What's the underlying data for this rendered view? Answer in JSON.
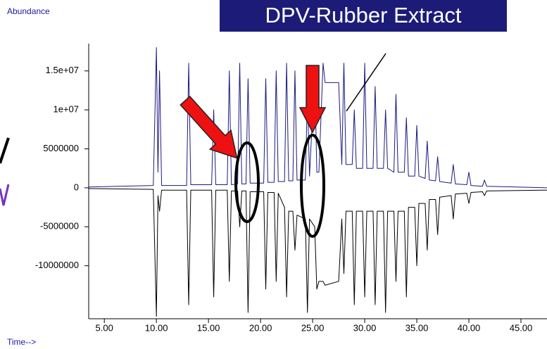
{
  "chart_data": {
    "type": "line",
    "title": "DPV-Rubber Extract",
    "y_label": "Abundance",
    "x_label": "Time-->",
    "x": [
      3.5,
      9.7,
      10.0,
      10.15,
      10.3,
      10.5,
      12.9,
      13.1,
      13.3,
      15.3,
      15.5,
      15.7,
      16.8,
      17.0,
      17.2,
      17.8,
      18.0,
      18.2,
      18.6,
      18.8,
      19.0,
      20.3,
      20.5,
      20.7,
      21.3,
      21.5,
      21.7,
      22.3,
      22.5,
      22.7,
      23.1,
      23.3,
      23.5,
      24.3,
      24.5,
      24.7,
      25.2,
      25.4,
      25.6,
      26.0,
      26.2,
      27.5,
      27.8,
      28.0,
      28.2,
      28.8,
      29.0,
      29.2,
      29.8,
      30.0,
      30.2,
      30.8,
      31.0,
      31.2,
      31.8,
      32.0,
      32.2,
      32.8,
      33.0,
      33.2,
      33.8,
      34.0,
      34.2,
      34.8,
      35.0,
      35.2,
      35.8,
      36.0,
      36.2,
      36.8,
      37.0,
      37.2,
      38.3,
      38.5,
      38.7,
      39.8,
      40.0,
      40.2,
      41.3,
      41.5,
      41.7,
      47.5
    ],
    "series": [
      {
        "color": "#1a1a80",
        "values": [
          100000,
          300000,
          18000000,
          2000000,
          15000000,
          300000,
          300000,
          16000000,
          400000,
          400000,
          10000000,
          400000,
          400000,
          15000000,
          400000,
          500000,
          16000000,
          500000,
          500000,
          14000000,
          600000,
          600000,
          14000000,
          700000,
          700000,
          15000000,
          800000,
          800000,
          16000000,
          900000,
          900000,
          15000000,
          1000000,
          1000000,
          12000000,
          1500000,
          15000000,
          2000000,
          2000000,
          16000000,
          13500000,
          13500000,
          3000000,
          16000000,
          3000000,
          3000000,
          10000000,
          2500000,
          2500000,
          16000000,
          2500000,
          2500000,
          13000000,
          2500000,
          2500000,
          10000000,
          2500000,
          2000000,
          12000000,
          2000000,
          2000000,
          9000000,
          1500000,
          1500000,
          8000000,
          1500000,
          1200000,
          6000000,
          1000000,
          900000,
          4000000,
          800000,
          600000,
          3000000,
          500000,
          400000,
          2000000,
          300000,
          200000,
          1000000,
          200000,
          0
        ]
      },
      {
        "color": "#000000",
        "values": [
          -100000,
          -200000,
          -16500000,
          -1000000,
          -3000000,
          -300000,
          -300000,
          -15000000,
          -300000,
          -300000,
          -14000000,
          -300000,
          -300000,
          -12000000,
          -400000,
          -400000,
          -5000000,
          -400000,
          -400000,
          -16000000,
          -500000,
          -500000,
          -13000000,
          -600000,
          -600000,
          -12000000,
          -700000,
          -2500000,
          -14000000,
          -3000000,
          -3000000,
          -8000000,
          -3500000,
          -4000000,
          -16000000,
          -4000000,
          -5000000,
          -13000000,
          -12000000,
          -12000000,
          -12500000,
          -12000000,
          -4000000,
          -11000000,
          -3000000,
          -3000000,
          -15000000,
          -3000000,
          -3000000,
          -14000000,
          -3000000,
          -3000000,
          -15000000,
          -3000000,
          -3000000,
          -16000000,
          -3000000,
          -3000000,
          -12000000,
          -3000000,
          -3000000,
          -14000000,
          -2500000,
          -2500000,
          -10000000,
          -2000000,
          -2000000,
          -8000000,
          -1500000,
          -1500000,
          -6000000,
          -1200000,
          -1000000,
          -4000000,
          -800000,
          -700000,
          -2000000,
          -600000,
          -500000,
          -1000000,
          -400000,
          -300000
        ]
      }
    ],
    "xlim": [
      3.5,
      47.5
    ],
    "ylim": [
      -16800000,
      18500000
    ],
    "xticks": [
      {
        "value": 5,
        "label": "5.00"
      },
      {
        "value": 10,
        "label": "10.00"
      },
      {
        "value": 15,
        "label": "15.00"
      },
      {
        "value": 20,
        "label": "20.00"
      },
      {
        "value": 25,
        "label": "25.00"
      },
      {
        "value": 30,
        "label": "30.00"
      },
      {
        "value": 35,
        "label": "35.00"
      },
      {
        "value": 40,
        "label": "40.00"
      },
      {
        "value": 45,
        "label": "45.00"
      }
    ],
    "yticks": [
      {
        "value": 15000000,
        "label": "1.5e+07"
      },
      {
        "value": 10000000,
        "label": "1e+07"
      },
      5000000,
      0,
      -5000000,
      -10000000
    ],
    "grid": false
  }
}
